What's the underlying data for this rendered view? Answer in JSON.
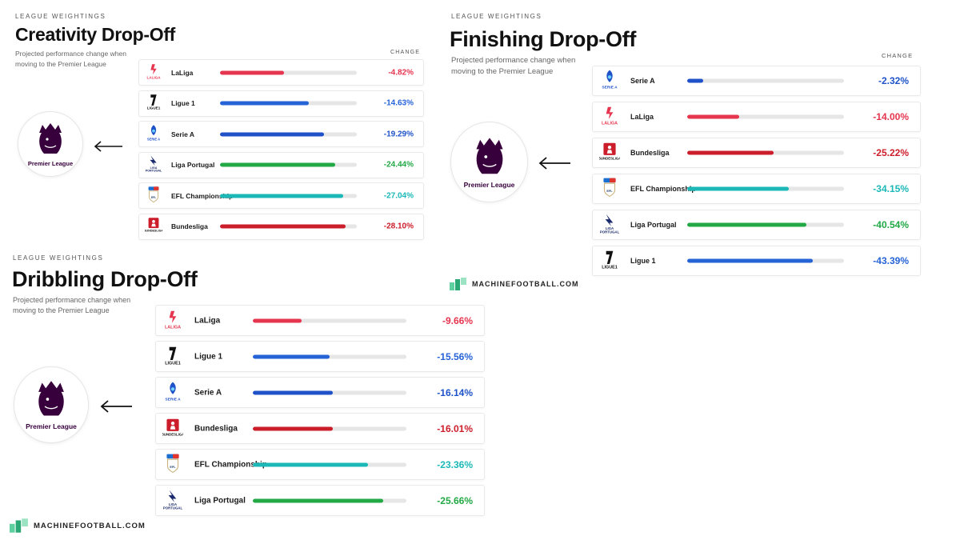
{
  "colors": {
    "laliga": "#e6354e",
    "ligue1": "#2563d6",
    "seriea": "#1f52c8",
    "ligaportugal": "#22a845",
    "efl": "#1cb8b8",
    "bundesliga": "#cc1d2b",
    "premier": "#37003c"
  },
  "panels": {
    "creativity": {
      "kicker": "LEAGUE WEIGHTINGS",
      "title": "Creativity Drop-Off",
      "subtitle": "Projected performance change when moving to the Premier League",
      "change_header": "CHANGE",
      "pl_label": "Premier League"
    },
    "finishing": {
      "kicker": "LEAGUE WEIGHTINGS",
      "title": "Finishing Drop-Off",
      "subtitle": "Projected performance change when moving to the Premier League",
      "change_header": "CHANGE",
      "pl_label": "Premier League"
    },
    "dribbling": {
      "kicker": "LEAGUE WEIGHTINGS",
      "title": "Dribbling Drop-Off",
      "subtitle": "Projected performance change when moving to the Premier League",
      "pl_label": "Premier League"
    }
  },
  "brand": {
    "text": "MACHINEFOOTBALL.COM"
  },
  "chart_data": [
    {
      "type": "bar",
      "title": "Creativity Drop-Off",
      "subtitle": "Projected performance change when moving to the Premier League",
      "categories": [
        "LaLiga",
        "Ligue 1",
        "Serie A",
        "Liga Portugal",
        "EFL Championship",
        "Bundesliga"
      ],
      "values": [
        -4.82,
        -14.63,
        -19.29,
        -24.44,
        -27.04,
        -28.1
      ],
      "labels": [
        "-4.82%",
        "-14.63%",
        "-19.29%",
        "-24.44%",
        "-27.04%",
        "-28.10%"
      ],
      "colors": [
        "laliga",
        "ligue1",
        "seriea",
        "ligaportugal",
        "efl",
        "bundesliga"
      ],
      "bar_fill": [
        0.47,
        0.65,
        0.76,
        0.84,
        0.9,
        0.92
      ],
      "value_colors": [
        "laliga",
        "ligue1",
        "seriea",
        "ligaportugal",
        "efl",
        "bundesliga"
      ]
    },
    {
      "type": "bar",
      "title": "Finishing Drop-Off",
      "subtitle": "Projected performance change when moving to the Premier League",
      "categories": [
        "Serie A",
        "LaLiga",
        "Bundesliga",
        "EFL Championship",
        "Liga Portugal",
        "Ligue 1"
      ],
      "values": [
        -2.32,
        -14.0,
        -25.22,
        -34.15,
        -40.54,
        -43.39
      ],
      "labels": [
        "-2.32%",
        "-14.00%",
        "-25.22%",
        "-34.15%",
        "-40.54%",
        "-43.39%"
      ],
      "colors": [
        "seriea",
        "laliga",
        "bundesliga",
        "efl",
        "ligaportugal",
        "ligue1"
      ],
      "bar_fill": [
        0.1,
        0.33,
        0.55,
        0.65,
        0.76,
        0.8
      ],
      "value_colors": [
        "seriea",
        "laliga",
        "bundesliga",
        "efl",
        "ligaportugal",
        "ligue1"
      ]
    },
    {
      "type": "bar",
      "title": "Dribbling Drop-Off",
      "subtitle": "Projected performance change when moving to the Premier League",
      "categories": [
        "LaLiga",
        "Ligue 1",
        "Serie A",
        "Bundesliga",
        "EFL Championship",
        "Liga Portugal"
      ],
      "values": [
        -9.66,
        -15.56,
        -16.14,
        -16.01,
        -23.36,
        -25.66
      ],
      "labels": [
        "-9.66%",
        "-15.56%",
        "-16.14%",
        "-16.01%",
        "-23.36%",
        "-25.66%"
      ],
      "colors": [
        "laliga",
        "ligue1",
        "seriea",
        "bundesliga",
        "efl",
        "ligaportugal"
      ],
      "bar_fill": [
        0.32,
        0.5,
        0.52,
        0.52,
        0.75,
        0.85
      ],
      "value_colors": [
        "laliga",
        "ligue1",
        "seriea",
        "bundesliga",
        "efl",
        "ligaportugal"
      ]
    }
  ]
}
